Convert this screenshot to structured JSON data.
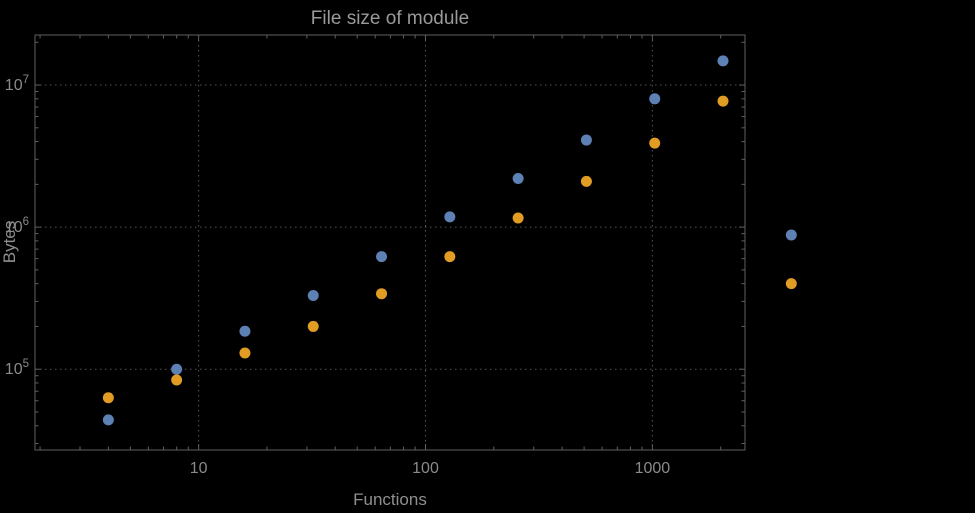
{
  "page": {
    "background": "#000000"
  },
  "colors": {
    "title_text": "#9a9a9a",
    "axis_text": "#8f8f8f",
    "tick_text": "#8a8a8a",
    "frame": "#5f5f5f",
    "grid": "#555555",
    "series_blue": "#5e81b5",
    "series_orange": "#e19c24"
  },
  "chart_data": {
    "type": "scatter",
    "title": "File size of module",
    "xlabel": "Functions",
    "ylabel": "Bytes",
    "x_scale": "log",
    "y_scale": "log",
    "xlim": [
      1.9,
      2560
    ],
    "ylim": [
      27000,
      22500000
    ],
    "x_major_ticks": [
      10,
      100,
      1000
    ],
    "y_major_ticks": [
      100000,
      1000000,
      10000000
    ],
    "grid": "dotted",
    "legend": "none",
    "marker_radius": 5.5,
    "series": [
      {
        "name": "series-blue",
        "color": "#5e81b5",
        "points": [
          [
            4,
            44000
          ],
          [
            8,
            100000
          ],
          [
            16,
            185000
          ],
          [
            32,
            330000
          ],
          [
            64,
            620000
          ],
          [
            128,
            1180000
          ],
          [
            256,
            2200000
          ],
          [
            512,
            4100000
          ],
          [
            1024,
            8000000
          ],
          [
            2048,
            14800000
          ],
          [
            4096,
            880000
          ]
        ]
      },
      {
        "name": "series-orange",
        "color": "#e19c24",
        "points": [
          [
            4,
            63000
          ],
          [
            8,
            84000
          ],
          [
            16,
            130000
          ],
          [
            32,
            200000
          ],
          [
            64,
            340000
          ],
          [
            128,
            620000
          ],
          [
            256,
            1160000
          ],
          [
            512,
            2100000
          ],
          [
            1024,
            3900000
          ],
          [
            2048,
            7700000
          ],
          [
            4096,
            400000
          ]
        ]
      }
    ]
  }
}
